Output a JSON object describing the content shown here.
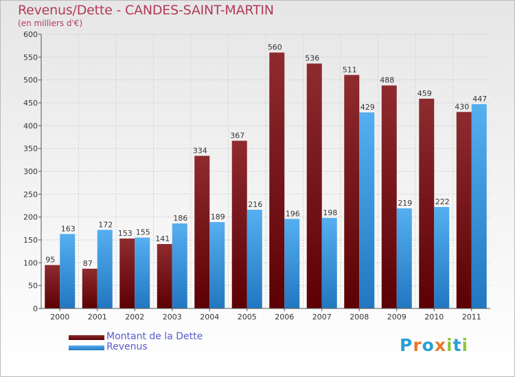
{
  "chart_data": {
    "type": "bar",
    "title": "Revenus/Dette - CANDES-SAINT-MARTIN",
    "subtitle": "(en milliers d'€)",
    "categories": [
      "2000",
      "2001",
      "2002",
      "2003",
      "2004",
      "2005",
      "2006",
      "2007",
      "2008",
      "2009",
      "2010",
      "2011"
    ],
    "series": [
      {
        "name": "Montant de la Dette",
        "color": "#7a1a1f",
        "values": [
          95,
          87,
          153,
          141,
          334,
          367,
          560,
          536,
          511,
          488,
          459,
          430
        ]
      },
      {
        "name": "Revenus",
        "color": "#3b97db",
        "values": [
          163,
          172,
          155,
          186,
          189,
          216,
          196,
          198,
          429,
          219,
          222,
          447
        ]
      }
    ],
    "ylim": [
      0,
      600
    ],
    "yticks": [
      0,
      50,
      100,
      150,
      200,
      250,
      300,
      350,
      400,
      450,
      500,
      550,
      600
    ],
    "grid": true,
    "legend_position": "bottom-left"
  },
  "logo": {
    "letters": [
      {
        "ch": "P",
        "color": "#2a9fd6"
      },
      {
        "ch": "r",
        "color": "#e8772e"
      },
      {
        "ch": "o",
        "color": "#2a9fd6"
      },
      {
        "ch": "x",
        "color": "#e8772e"
      },
      {
        "ch": "i",
        "color": "#8cc63f"
      },
      {
        "ch": "t",
        "color": "#2a9fd6"
      },
      {
        "ch": "i",
        "color": "#8cc63f"
      }
    ]
  }
}
